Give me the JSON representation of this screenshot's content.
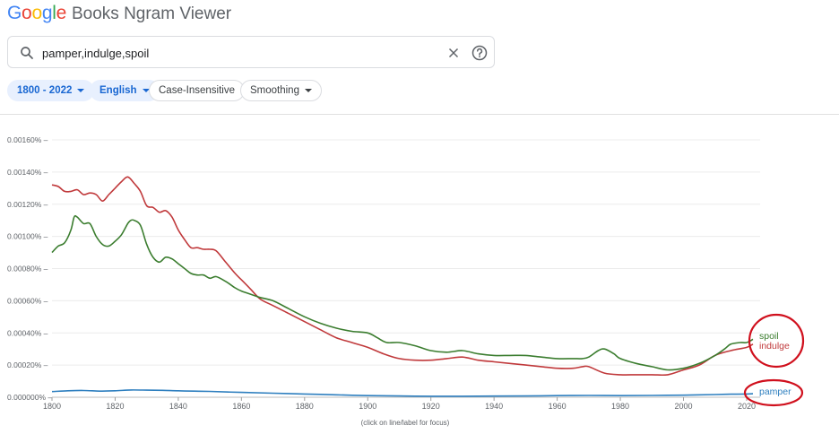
{
  "header": {
    "logo_letters": [
      "G",
      "o",
      "o",
      "g",
      "l",
      "e"
    ],
    "app_name": "Books Ngram Viewer"
  },
  "search": {
    "value": "pamper,indulge,spoil",
    "icon": "search-icon",
    "clear_icon": "close-icon",
    "help_icon": "help-icon"
  },
  "filters": {
    "year_range": "1800 - 2022",
    "corpus": "English",
    "case": "Case-Insensitive",
    "smoothing": "Smoothing"
  },
  "footnote": "(click on line/label for focus)",
  "colors": {
    "spoil": "#3b7d2f",
    "indulge": "#c0393b",
    "pamper": "#2e7fbf",
    "annotation": "#d0101d"
  },
  "chart_data": {
    "type": "line",
    "x_label": "",
    "y_label": "",
    "xlim": [
      1800,
      2022
    ],
    "ylim": [
      0,
      0.0016
    ],
    "x_ticks": [
      "1800",
      "1820",
      "1840",
      "1860",
      "1880",
      "1900",
      "1920",
      "1940",
      "1960",
      "1980",
      "2000",
      "2020"
    ],
    "y_ticks": [
      "0.000000%",
      "0.00020%",
      "0.00040%",
      "0.00060%",
      "0.00080%",
      "0.00100%",
      "0.00120%",
      "0.00140%",
      "0.00160%"
    ],
    "grid": true,
    "annotations": [
      "red circle around spoil/indulge labels",
      "red circle around pamper label"
    ],
    "series": [
      {
        "name": "spoil",
        "x": [
          1800,
          1802,
          1804,
          1806,
          1807,
          1808,
          1810,
          1812,
          1814,
          1816,
          1818,
          1820,
          1822,
          1824,
          1825,
          1826,
          1828,
          1830,
          1832,
          1834,
          1836,
          1838,
          1840,
          1842,
          1844,
          1846,
          1848,
          1850,
          1852,
          1855,
          1858,
          1860,
          1863,
          1866,
          1870,
          1875,
          1880,
          1885,
          1890,
          1895,
          1900,
          1903,
          1906,
          1910,
          1915,
          1920,
          1925,
          1930,
          1935,
          1940,
          1945,
          1950,
          1955,
          1960,
          1965,
          1968,
          1970,
          1973,
          1975,
          1978,
          1980,
          1985,
          1990,
          1995,
          2000,
          2005,
          2010,
          2013,
          2015,
          2018,
          2020,
          2022
        ],
        "y": [
          0.0009,
          0.00094,
          0.00096,
          0.00104,
          0.00112,
          0.00112,
          0.00108,
          0.00108,
          0.001,
          0.00095,
          0.00094,
          0.00097,
          0.00101,
          0.00108,
          0.0011,
          0.0011,
          0.00107,
          0.00095,
          0.00087,
          0.00084,
          0.00087,
          0.00086,
          0.00083,
          0.0008,
          0.00077,
          0.00076,
          0.00076,
          0.00074,
          0.00075,
          0.00072,
          0.00068,
          0.00066,
          0.00064,
          0.00062,
          0.0006,
          0.00055,
          0.0005,
          0.00046,
          0.00043,
          0.00041,
          0.0004,
          0.00037,
          0.00034,
          0.00034,
          0.00032,
          0.00029,
          0.00028,
          0.00029,
          0.00027,
          0.00026,
          0.00026,
          0.00026,
          0.00025,
          0.00024,
          0.00024,
          0.00024,
          0.00025,
          0.00029,
          0.0003,
          0.00027,
          0.00024,
          0.00021,
          0.00019,
          0.00017,
          0.00018,
          0.00021,
          0.00026,
          0.0003,
          0.00033,
          0.00034,
          0.00034,
          0.00036
        ]
      },
      {
        "name": "indulge",
        "x": [
          1800,
          1802,
          1804,
          1806,
          1808,
          1810,
          1812,
          1814,
          1816,
          1818,
          1820,
          1822,
          1824,
          1826,
          1828,
          1830,
          1832,
          1834,
          1836,
          1838,
          1840,
          1842,
          1844,
          1846,
          1848,
          1850,
          1852,
          1855,
          1858,
          1860,
          1863,
          1866,
          1870,
          1875,
          1880,
          1885,
          1890,
          1895,
          1900,
          1905,
          1910,
          1915,
          1920,
          1925,
          1930,
          1935,
          1940,
          1945,
          1950,
          1955,
          1960,
          1965,
          1968,
          1970,
          1975,
          1980,
          1985,
          1990,
          1995,
          2000,
          2005,
          2010,
          2015,
          2020,
          2022
        ],
        "y": [
          0.00132,
          0.00131,
          0.00128,
          0.00128,
          0.00129,
          0.00126,
          0.00127,
          0.00126,
          0.00122,
          0.00126,
          0.0013,
          0.00134,
          0.00137,
          0.00133,
          0.00128,
          0.00119,
          0.00118,
          0.00115,
          0.00116,
          0.00112,
          0.00104,
          0.00098,
          0.00093,
          0.00093,
          0.00092,
          0.00092,
          0.00091,
          0.00084,
          0.00077,
          0.00073,
          0.00067,
          0.00061,
          0.00057,
          0.00052,
          0.00047,
          0.00042,
          0.00037,
          0.00034,
          0.00031,
          0.00027,
          0.00024,
          0.00023,
          0.00023,
          0.00024,
          0.00025,
          0.00023,
          0.00022,
          0.00021,
          0.0002,
          0.00019,
          0.00018,
          0.00018,
          0.00019,
          0.00019,
          0.00015,
          0.00014,
          0.00014,
          0.00014,
          0.00014,
          0.00017,
          0.0002,
          0.00026,
          0.00029,
          0.00031,
          0.00033
        ]
      },
      {
        "name": "pamper",
        "x": [
          1800,
          1805,
          1810,
          1815,
          1820,
          1825,
          1830,
          1835,
          1840,
          1845,
          1850,
          1860,
          1870,
          1880,
          1890,
          1900,
          1910,
          1920,
          1930,
          1940,
          1950,
          1960,
          1970,
          1980,
          1990,
          2000,
          2010,
          2015,
          2020,
          2022
        ],
        "y": [
          3.5e-05,
          4e-05,
          4.2e-05,
          3.8e-05,
          4e-05,
          4.5e-05,
          4.4e-05,
          4.3e-05,
          4e-05,
          3.8e-05,
          3.6e-05,
          3e-05,
          2.5e-05,
          2e-05,
          1.5e-05,
          1e-05,
          8e-06,
          6e-06,
          6e-06,
          7e-06,
          8e-06,
          1e-05,
          1.1e-05,
          1e-05,
          1.1e-05,
          1.3e-05,
          1.7e-05,
          1.9e-05,
          2e-05,
          2.2e-05
        ]
      }
    ]
  }
}
